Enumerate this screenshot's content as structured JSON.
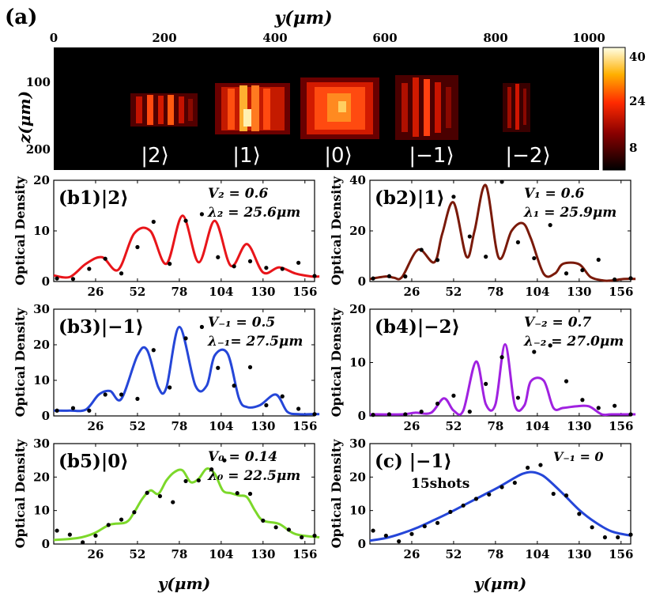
{
  "panel_a": {
    "label": "(a)",
    "xlabel": "y(μm)",
    "ylabel": "z(μm)",
    "x_ticks": [
      "0",
      "200",
      "400",
      "600",
      "800",
      "1000"
    ],
    "y_ticks": [
      "100",
      "200"
    ],
    "colorbar_ticks": [
      "40",
      "24",
      "8"
    ],
    "state_labels": [
      "|2⟩",
      "|1⟩",
      "|0⟩",
      "|−1⟩",
      "|−2⟩"
    ]
  },
  "common": {
    "ylabel": "Optical Density",
    "xlabel": "y(μm)",
    "x_ticks": [
      "26",
      "52",
      "78",
      "104",
      "130",
      "156"
    ]
  },
  "chart_data": [
    {
      "id": "b1",
      "type": "line",
      "label": "(b1)|2⟩",
      "annotation_1": "V₂ = 0.6",
      "annotation_2": "λ₂ = 25.6μm",
      "color": "#e8151a",
      "xlim": [
        0,
        162
      ],
      "ylim": [
        0,
        20
      ],
      "y_ticks": [
        "0",
        "10",
        "20"
      ],
      "points_x": [
        2,
        12,
        22,
        32,
        42,
        52,
        62,
        72,
        82,
        92,
        102,
        112,
        122,
        132,
        142,
        152,
        162
      ],
      "points_y": [
        0.6,
        0.5,
        2.5,
        4.5,
        1.6,
        6.8,
        11.8,
        3.5,
        12,
        13.3,
        4.8,
        3.0,
        4.0,
        2.7,
        2.5,
        3.7,
        1.1
      ],
      "curve_x": [
        0,
        10,
        20,
        30,
        40,
        50,
        60,
        70,
        80,
        90,
        100,
        110,
        120,
        130,
        140,
        150,
        160,
        165
      ],
      "curve_y": [
        1.2,
        0.9,
        3.5,
        4.8,
        2.3,
        9.5,
        10,
        3.5,
        13,
        3.8,
        12,
        3.1,
        7.4,
        1.8,
        2.8,
        1.6,
        1.0,
        1.0
      ]
    },
    {
      "id": "b2",
      "type": "line",
      "label": "(b2)|1⟩",
      "annotation_1": "V₁ = 0.6",
      "annotation_2": "λ₁ = 25.9μm",
      "color": "#7a1a0a",
      "xlim": [
        0,
        162
      ],
      "ylim": [
        0,
        40
      ],
      "y_ticks": [
        "0",
        "20",
        "40"
      ],
      "points_x": [
        2,
        12,
        22,
        32,
        42,
        52,
        62,
        72,
        82,
        92,
        102,
        112,
        122,
        132,
        142,
        152,
        162
      ],
      "points_y": [
        1.2,
        2.1,
        2.0,
        12.5,
        8.5,
        33.5,
        17.8,
        9.8,
        39.4,
        15.5,
        9.2,
        22.3,
        3.2,
        4.5,
        8.6,
        0.8,
        1.3
      ],
      "curve_x": [
        0,
        10,
        15,
        20,
        30,
        40,
        45,
        52,
        60,
        65,
        72,
        80,
        88,
        95,
        100,
        108,
        115,
        120,
        130,
        137,
        145,
        150,
        158,
        165
      ],
      "curve_y": [
        1.0,
        2.0,
        1.5,
        1.8,
        12.6,
        7.6,
        19.0,
        31.2,
        9.8,
        20,
        38,
        9.4,
        20,
        23,
        17,
        3.0,
        3.2,
        7.0,
        6.8,
        1.8,
        0.4,
        0.4,
        1.0,
        1.0
      ]
    },
    {
      "id": "b3",
      "type": "line",
      "label": "(b3)|−1⟩",
      "annotation_1": "V₋₁ = 0.5",
      "annotation_2": "λ₋₁= 27.5μm",
      "color": "#2546d8",
      "xlim": [
        0,
        162
      ],
      "ylim": [
        0,
        30
      ],
      "y_ticks": [
        "0",
        "10",
        "20",
        "30"
      ],
      "points_x": [
        2,
        12,
        22,
        32,
        42,
        52,
        62,
        72,
        82,
        92,
        102,
        112,
        122,
        132,
        142,
        152,
        162
      ],
      "points_y": [
        1.5,
        2.2,
        1.5,
        6.0,
        6.0,
        4.8,
        18.5,
        8.0,
        21.8,
        25.0,
        13.5,
        8.5,
        13.7,
        3.0,
        5.5,
        2.0,
        0.5
      ],
      "curve_x": [
        0,
        10,
        20,
        28,
        35,
        42,
        52,
        58,
        65,
        70,
        78,
        88,
        95,
        100,
        108,
        115,
        120,
        128,
        138,
        145,
        152,
        160,
        165
      ],
      "curve_y": [
        1.5,
        1.5,
        1.8,
        6.0,
        7.0,
        4.8,
        17.0,
        18.5,
        8.0,
        8.0,
        25.0,
        8.5,
        8.5,
        17,
        17.5,
        5,
        2.5,
        3.0,
        6.0,
        1.2,
        0.5,
        0.5,
        0.5
      ]
    },
    {
      "id": "b4",
      "type": "line",
      "label": "(b4)|−2⟩",
      "annotation_1": "V₋₂ = 0.7",
      "annotation_2": "λ₋₂ = 27.0μm",
      "color": "#a021e0",
      "xlim": [
        0,
        162
      ],
      "ylim": [
        0,
        20
      ],
      "y_ticks": [
        "0",
        "10",
        "20"
      ],
      "points_x": [
        2,
        12,
        22,
        32,
        42,
        52,
        62,
        72,
        82,
        92,
        102,
        112,
        122,
        132,
        142,
        152,
        162
      ],
      "points_y": [
        0.2,
        0.3,
        0.3,
        0.8,
        2.3,
        3.8,
        0.8,
        6.0,
        11.0,
        3.4,
        12.0,
        13.2,
        6.5,
        3.0,
        1.5,
        1.9,
        0.3
      ],
      "curve_x": [
        0,
        20,
        28,
        38,
        46,
        52,
        58,
        66,
        72,
        78,
        84,
        90,
        96,
        100,
        108,
        114,
        120,
        128,
        136,
        144,
        150,
        165
      ],
      "curve_y": [
        0.3,
        0.3,
        0.6,
        0.6,
        3.3,
        1.0,
        1.0,
        10.2,
        2.2,
        2.2,
        13.4,
        2.0,
        2.0,
        6.5,
        6.6,
        1.5,
        1.5,
        1.8,
        1.8,
        0.3,
        0.3,
        0.3
      ]
    },
    {
      "id": "b5",
      "type": "line",
      "label": "(b5)|0⟩",
      "annotation_1": "V₀ = 0.14",
      "annotation_2": "λ₀ = 22.5μm",
      "color": "#7cd82a",
      "xlim": [
        0,
        162
      ],
      "ylim": [
        0,
        30
      ],
      "y_ticks": [
        "0",
        "10",
        "20",
        "30"
      ],
      "points_x": [
        2,
        10,
        18,
        26,
        34,
        42,
        50,
        58,
        66,
        74,
        82,
        90,
        98,
        106,
        114,
        122,
        130,
        138,
        146,
        154,
        162
      ],
      "points_y": [
        4.0,
        2.8,
        0.5,
        2.5,
        5.7,
        7.3,
        9.5,
        15.3,
        14.3,
        12.5,
        18.8,
        19.0,
        22.3,
        25.0,
        15.2,
        15.0,
        7.0,
        5.0,
        4.3,
        2.0,
        2.5
      ],
      "curve_x": [
        0,
        15,
        25,
        35,
        45,
        50,
        55,
        60,
        65,
        70,
        75,
        80,
        85,
        90,
        95,
        100,
        105,
        110,
        115,
        120,
        125,
        130,
        140,
        150,
        165
      ],
      "curve_y": [
        1.2,
        1.8,
        3.2,
        5.8,
        6.5,
        9.5,
        13.5,
        16.0,
        15.0,
        19.0,
        21.5,
        22.0,
        18.5,
        19.5,
        22.5,
        21.0,
        16.0,
        15.2,
        14.5,
        14.0,
        10.0,
        7.0,
        6.0,
        3.0,
        2.0
      ]
    },
    {
      "id": "c",
      "type": "line",
      "label": "(c)  |−1⟩",
      "annotation_1": "V₋₁ = 0",
      "annotation_2": "15shots",
      "color": "#2546d8",
      "xlim": [
        0,
        162
      ],
      "ylim": [
        0,
        30
      ],
      "y_ticks": [
        "0",
        "10",
        "20",
        "30"
      ],
      "points_x": [
        2,
        10,
        18,
        26,
        34,
        42,
        50,
        58,
        66,
        74,
        82,
        90,
        98,
        106,
        114,
        122,
        130,
        138,
        146,
        154,
        162
      ],
      "points_y": [
        4.0,
        2.5,
        0.8,
        3.0,
        5.3,
        6.3,
        9.6,
        11.5,
        13.5,
        14.8,
        17.0,
        18.3,
        22.8,
        23.6,
        15.0,
        14.5,
        9.0,
        5.0,
        2.0,
        2.0,
        2.8
      ],
      "curve_x": [
        0,
        10,
        20,
        30,
        40,
        50,
        60,
        70,
        80,
        90,
        95,
        100,
        105,
        110,
        120,
        130,
        140,
        150,
        162
      ],
      "curve_y": [
        1.0,
        1.8,
        3.2,
        5.0,
        7.2,
        9.5,
        12.0,
        14.5,
        17.0,
        19.8,
        21.0,
        21.5,
        21.0,
        19.5,
        15.0,
        10.2,
        6.5,
        3.8,
        2.5
      ]
    }
  ]
}
